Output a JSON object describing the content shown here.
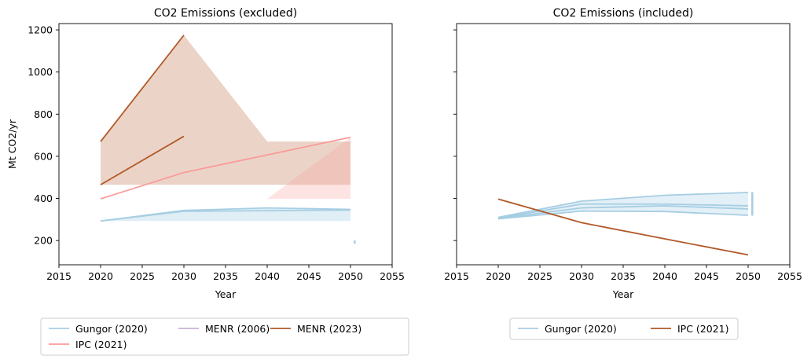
{
  "chart_data": [
    {
      "type": "line",
      "title": "CO2 Emissions (excluded)",
      "xlabel": "Year",
      "ylabel": "Mt CO2/yr",
      "xlim": [
        2015,
        2055
      ],
      "ylim": [
        85,
        1230
      ],
      "xticks": [
        "2015",
        "2020",
        "2025",
        "2030",
        "2035",
        "2040",
        "2045",
        "2050",
        "2055"
      ],
      "yticks": [
        "200",
        "400",
        "600",
        "800",
        "1000",
        "1200"
      ],
      "grid": false,
      "legend_position": "bottom",
      "legend": [
        {
          "label": "Gungor (2020)",
          "color": "#a6cee3"
        },
        {
          "label": "IPC (2021)",
          "color": "#fb9a99"
        },
        {
          "label": "MENR (2006)",
          "color": "#cab2d6"
        },
        {
          "label": "MENR (2023)",
          "color": "#b15928"
        }
      ],
      "bands": [
        {
          "name": "MENR (2023)",
          "color": "#b15928",
          "opacity": 0.26,
          "x": [
            2020,
            2030,
            2040,
            2050
          ],
          "lower": [
            465,
            465,
            465,
            465
          ],
          "upper": [
            670,
            1175,
            670,
            670
          ]
        },
        {
          "name": "IPC (2021)",
          "color": "#fb9a99",
          "opacity": 0.28,
          "x": [
            2020,
            2030,
            2040,
            2050
          ],
          "lower": [
            398,
            520,
            398,
            398
          ],
          "upper": [
            398,
            520,
            398,
            690
          ]
        },
        {
          "name": "Gungor (2020)",
          "color": "#a6cee3",
          "opacity": 0.35,
          "x": [
            2020,
            2030,
            2040,
            2050
          ],
          "lower": [
            293,
            293,
            293,
            293
          ],
          "upper": [
            293,
            343,
            355,
            348
          ]
        }
      ],
      "series": [
        {
          "name": "MENR (2023)",
          "color": "#b15928",
          "x": [
            2020,
            2030
          ],
          "y": [
            670,
            1175
          ]
        },
        {
          "name": "MENR (2023)",
          "color": "#b15928",
          "x": [
            2020,
            2030
          ],
          "y": [
            465,
            695
          ]
        },
        {
          "name": "IPC (2021)",
          "color": "#fb9a99",
          "x": [
            2020,
            2030,
            2050
          ],
          "y": [
            398,
            523,
            690
          ]
        },
        {
          "name": "Gungor (2020)",
          "color": "#a6cee3",
          "x": [
            2020,
            2030,
            2040,
            2050
          ],
          "y": [
            293,
            343,
            355,
            348
          ]
        },
        {
          "name": "Gungor (2020)",
          "color": "#a6cee3",
          "x": [
            2020,
            2030,
            2050
          ],
          "y": [
            293,
            339,
            345
          ]
        }
      ],
      "markers": [
        {
          "name": "Gungor (2020)",
          "color": "#a6cee3",
          "x": 2050.5,
          "y1": 185,
          "y2": 200
        }
      ]
    },
    {
      "type": "line",
      "title": "CO2 Emissions (included)",
      "xlabel": "Year",
      "ylabel": "",
      "xlim": [
        2015,
        2055
      ],
      "ylim": [
        85,
        1230
      ],
      "xticks": [
        "2015",
        "2020",
        "2025",
        "2030",
        "2035",
        "2040",
        "2045",
        "2050",
        "2055"
      ],
      "yticks": [],
      "grid": false,
      "legend_position": "bottom",
      "legend": [
        {
          "label": "Gungor (2020)",
          "color": "#a6cee3"
        },
        {
          "label": "IPC (2021)",
          "color": "#b15928"
        }
      ],
      "bands": [
        {
          "name": "Gungor (2020)",
          "color": "#a6cee3",
          "opacity": 0.3,
          "x": [
            2020,
            2030,
            2040,
            2050
          ],
          "lower": [
            303,
            340,
            338,
            320
          ],
          "upper": [
            310,
            387,
            415,
            428
          ]
        }
      ],
      "series": [
        {
          "name": "Gungor (2020)",
          "color": "#a6cee3",
          "x": [
            2020,
            2030,
            2040,
            2050
          ],
          "y": [
            310,
            387,
            415,
            428
          ]
        },
        {
          "name": "Gungor (2020)",
          "color": "#a6cee3",
          "x": [
            2020,
            2030,
            2040,
            2050
          ],
          "y": [
            307,
            373,
            373,
            365
          ]
        },
        {
          "name": "Gungor (2020)",
          "color": "#a6cee3",
          "x": [
            2020,
            2030,
            2040,
            2050
          ],
          "y": [
            305,
            355,
            365,
            350
          ]
        },
        {
          "name": "Gungor (2020)",
          "color": "#a6cee3",
          "x": [
            2020,
            2030,
            2040,
            2050
          ],
          "y": [
            303,
            340,
            338,
            320
          ]
        },
        {
          "name": "IPC (2021)",
          "color": "#b15928",
          "x": [
            2020,
            2030,
            2040,
            2050
          ],
          "y": [
            397,
            285,
            208,
            132
          ]
        }
      ],
      "markers": [
        {
          "name": "Gungor (2020)",
          "color": "#a6cee3",
          "x": 2050.5,
          "y1": 318,
          "y2": 430
        }
      ]
    }
  ]
}
